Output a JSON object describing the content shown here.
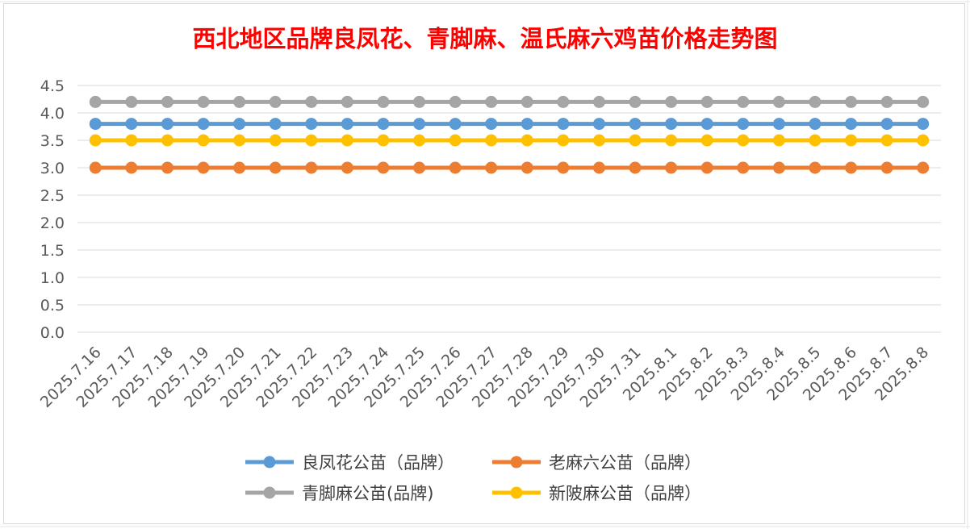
{
  "chart_data": {
    "type": "line",
    "title": "西北地区品牌良凤花、青脚麻、温氏麻六鸡苗价格走势图",
    "xlabel": "",
    "ylabel": "",
    "ylim": [
      0,
      4.5
    ],
    "yticks": [
      "0.0",
      "0.5",
      "1.0",
      "1.5",
      "2.0",
      "2.5",
      "3.0",
      "3.5",
      "4.0",
      "4.5"
    ],
    "grid": true,
    "legend_position": "bottom",
    "categories": [
      "2025.7.16",
      "2025.7.17",
      "2025.7.18",
      "2025.7.19",
      "2025.7.20",
      "2025.7.21",
      "2025.7.22",
      "2025.7.23",
      "2025.7.24",
      "2025.7.25",
      "2025.7.26",
      "2025.7.27",
      "2025.7.28",
      "2025.7.29",
      "2025.7.30",
      "2025.7.31",
      "2025.8.1",
      "2025.8.2",
      "2025.8.3",
      "2025.8.4",
      "2025.8.5",
      "2025.8.6",
      "2025.8.7",
      "2025.8.8"
    ],
    "series": [
      {
        "name": "良凤花公苗（品牌）",
        "color": "#5b9bd5",
        "values": [
          3.8,
          3.8,
          3.8,
          3.8,
          3.8,
          3.8,
          3.8,
          3.8,
          3.8,
          3.8,
          3.8,
          3.8,
          3.8,
          3.8,
          3.8,
          3.8,
          3.8,
          3.8,
          3.8,
          3.8,
          3.8,
          3.8,
          3.8,
          3.8
        ]
      },
      {
        "name": "老麻六公苗（品牌）",
        "color": "#ed7d31",
        "values": [
          3.0,
          3.0,
          3.0,
          3.0,
          3.0,
          3.0,
          3.0,
          3.0,
          3.0,
          3.0,
          3.0,
          3.0,
          3.0,
          3.0,
          3.0,
          3.0,
          3.0,
          3.0,
          3.0,
          3.0,
          3.0,
          3.0,
          3.0,
          3.0
        ]
      },
      {
        "name": "青脚麻公苗(品牌)",
        "color": "#a5a5a5",
        "values": [
          4.2,
          4.2,
          4.2,
          4.2,
          4.2,
          4.2,
          4.2,
          4.2,
          4.2,
          4.2,
          4.2,
          4.2,
          4.2,
          4.2,
          4.2,
          4.2,
          4.2,
          4.2,
          4.2,
          4.2,
          4.2,
          4.2,
          4.2,
          4.2
        ]
      },
      {
        "name": "新陂麻公苗（品牌）",
        "color": "#ffc000",
        "values": [
          3.5,
          3.5,
          3.5,
          3.5,
          3.5,
          3.5,
          3.5,
          3.5,
          3.5,
          3.5,
          3.5,
          3.5,
          3.5,
          3.5,
          3.5,
          3.5,
          3.5,
          3.5,
          3.5,
          3.5,
          3.5,
          3.5,
          3.5,
          3.5
        ]
      }
    ]
  }
}
